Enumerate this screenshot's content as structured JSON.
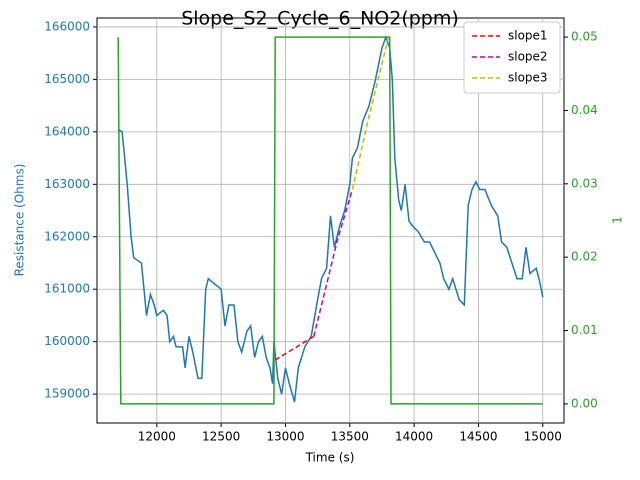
{
  "chart_data": {
    "type": "line",
    "title": "Slope_S2_Cycle_6_NO2(ppm)",
    "x_label": "Time (s)",
    "y_label": "Resistance (Ohms)",
    "y2_label": "1",
    "xlim": [
      11535,
      15165
    ],
    "xticks": [
      12000,
      12500,
      13000,
      13500,
      14000,
      14500,
      15000
    ],
    "ylim": [
      158450,
      166170
    ],
    "yticks": [
      159000,
      160000,
      161000,
      162000,
      163000,
      164000,
      165000,
      166000
    ],
    "y2lim": [
      -0.0026,
      0.0526
    ],
    "y2ticks": [
      {
        "value": 0,
        "label": "0.00"
      },
      {
        "value": 0.01,
        "label": "0.01"
      },
      {
        "value": 0.02,
        "label": "0.02"
      },
      {
        "value": 0.03,
        "label": "0.03"
      },
      {
        "value": 0.04,
        "label": "0.04"
      },
      {
        "value": 0.05,
        "label": "0.05"
      }
    ],
    "grid": true,
    "legend": "upper right",
    "y_color": "#1f77b4",
    "y2_color": "#2ca02c",
    "series": [
      {
        "color": "#1f77b4",
        "axis": "y",
        "x": [
          11700,
          11730,
          11750,
          11770,
          11800,
          11820,
          11880,
          11900,
          11920,
          11950,
          11980,
          12000,
          12050,
          12080,
          12100,
          12130,
          12150,
          12200,
          12220,
          12250,
          12280,
          12320,
          12350,
          12380,
          12400,
          12450,
          12500,
          12530,
          12560,
          12600,
          12630,
          12660,
          12700,
          12730,
          12760,
          12790,
          12820,
          12850,
          12880,
          12900,
          12910,
          12940,
          12970,
          13000,
          13030,
          13070,
          13100,
          13150,
          13200,
          13250,
          13280,
          13320,
          13350,
          13380,
          13420,
          13460,
          13500,
          13520,
          13560,
          13600,
          13650,
          13700,
          13750,
          13780,
          13810,
          13830,
          13850,
          13880,
          13900,
          13930,
          13960,
          13990,
          14030,
          14080,
          14120,
          14160,
          14200,
          14230,
          14270,
          14300,
          14350,
          14390,
          14420,
          14450,
          14480,
          14510,
          14550,
          14600,
          14650,
          14680,
          14720,
          14760,
          14800,
          14840,
          14870,
          14900,
          14950,
          14980,
          15000
        ],
        "values": [
          164050,
          164000,
          163500,
          163000,
          162000,
          161600,
          161500,
          161000,
          160500,
          160900,
          160700,
          160500,
          160600,
          160500,
          160000,
          160100,
          159900,
          159900,
          159500,
          160100,
          159800,
          159300,
          159300,
          161000,
          161200,
          161100,
          161000,
          160300,
          160700,
          160700,
          160000,
          159800,
          160200,
          160300,
          159700,
          160000,
          160100,
          159700,
          159500,
          159200,
          160000,
          159300,
          159000,
          159500,
          159200,
          158850,
          159500,
          159900,
          160100,
          160800,
          161200,
          161400,
          162400,
          161800,
          162200,
          162500,
          163000,
          163500,
          163700,
          164200,
          164500,
          165000,
          165600,
          165800,
          165600,
          165000,
          163500,
          162700,
          162500,
          163000,
          162300,
          162200,
          162100,
          161900,
          161900,
          161700,
          161500,
          161200,
          161000,
          161200,
          160800,
          160700,
          162600,
          162900,
          163050,
          162900,
          162900,
          162600,
          162400,
          161900,
          161800,
          161500,
          161200,
          161200,
          161800,
          161300,
          161400,
          161100,
          160850
        ]
      },
      {
        "color": "#2ca02c",
        "axis": "y2",
        "x": [
          11700,
          11720,
          12910,
          12920,
          13810,
          13820,
          15000
        ],
        "values": [
          0.05,
          0,
          0,
          0.05,
          0.05,
          0,
          0
        ]
      },
      {
        "name": "slope1",
        "color": "#ff0000",
        "axis": "y",
        "style": "dashed",
        "x": [
          12920,
          13220
        ],
        "values": [
          159650,
          160100
        ]
      },
      {
        "name": "slope2",
        "color": "#bf00bf",
        "axis": "y",
        "style": "dashed",
        "x": [
          13220,
          13300,
          13400,
          13520
        ],
        "values": [
          160100,
          160900,
          161900,
          162900
        ]
      },
      {
        "name": "slope3",
        "color": "#bfbf00",
        "axis": "y",
        "style": "dashed",
        "x": [
          13520,
          13650,
          13800
        ],
        "values": [
          162900,
          164300,
          165800
        ]
      }
    ]
  }
}
